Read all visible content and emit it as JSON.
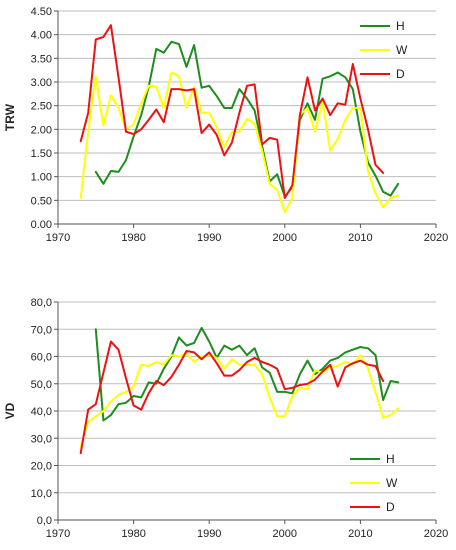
{
  "chart_data": [
    {
      "type": "line",
      "title": "",
      "xlabel": "",
      "ylabel": "TRW",
      "xlim": [
        1970,
        2020
      ],
      "ylim": [
        0,
        4.5
      ],
      "xticks": [
        "1970",
        "1980",
        "1990",
        "2000",
        "2010",
        "2020"
      ],
      "yticks": [
        "0.00",
        "0.50",
        "1.00",
        "1.50",
        "2.00",
        "2.50",
        "3.00",
        "3.50",
        "4.00",
        "4.50"
      ],
      "grid": "horizontal",
      "legend_position": "top-right",
      "series": [
        {
          "name": "H",
          "color": "#1e8c1e",
          "x": [
            1975,
            1976,
            1977,
            1978,
            1979,
            1980,
            1981,
            1982,
            1983,
            1984,
            1985,
            1986,
            1987,
            1988,
            1989,
            1990,
            1991,
            1992,
            1993,
            1994,
            1995,
            1996,
            1997,
            1998,
            1999,
            2000,
            2001,
            2002,
            2003,
            2004,
            2005,
            2006,
            2007,
            2008,
            2009,
            2010,
            2011,
            2012,
            2013,
            2014,
            2015
          ],
          "y": [
            1.1,
            0.85,
            1.12,
            1.1,
            1.35,
            1.85,
            2.3,
            2.9,
            3.7,
            3.62,
            3.85,
            3.8,
            3.32,
            3.78,
            2.88,
            2.92,
            2.7,
            2.45,
            2.45,
            2.85,
            2.65,
            2.4,
            1.65,
            0.9,
            1.05,
            0.58,
            0.78,
            2.2,
            2.55,
            2.2,
            3.07,
            3.12,
            3.2,
            3.1,
            2.85,
            1.95,
            1.3,
            1.02,
            0.68,
            0.6,
            0.85
          ]
        },
        {
          "name": "W",
          "color": "#ffff00",
          "x": [
            1973,
            1974,
            1975,
            1976,
            1977,
            1978,
            1979,
            1980,
            1981,
            1982,
            1983,
            1984,
            1985,
            1986,
            1987,
            1988,
            1989,
            1990,
            1991,
            1992,
            1993,
            1994,
            1995,
            1996,
            1997,
            1998,
            1999,
            2000,
            2001,
            2002,
            2003,
            2004,
            2005,
            2006,
            2007,
            2008,
            2009,
            2010,
            2011,
            2012,
            2013,
            2014,
            2015
          ],
          "y": [
            0.55,
            1.95,
            3.12,
            2.08,
            2.72,
            2.45,
            2.0,
            2.1,
            2.55,
            2.92,
            2.9,
            2.45,
            3.2,
            3.12,
            2.45,
            2.9,
            2.35,
            2.35,
            2.05,
            1.62,
            1.95,
            1.95,
            2.22,
            2.12,
            1.55,
            0.85,
            0.72,
            0.25,
            0.55,
            2.3,
            2.45,
            1.95,
            2.58,
            1.55,
            1.8,
            2.2,
            2.45,
            2.45,
            1.12,
            0.65,
            0.35,
            0.55,
            0.6
          ]
        },
        {
          "name": "D",
          "color": "#ee1111",
          "x": [
            1973,
            1974,
            1975,
            1976,
            1977,
            1978,
            1979,
            1980,
            1981,
            1982,
            1983,
            1984,
            1985,
            1986,
            1987,
            1988,
            1989,
            1990,
            1991,
            1992,
            1993,
            1994,
            1995,
            1996,
            1997,
            1998,
            1999,
            2000,
            2001,
            2002,
            2003,
            2004,
            2005,
            2006,
            2007,
            2008,
            2009,
            2010,
            2011,
            2012,
            2013
          ],
          "y": [
            1.75,
            2.35,
            3.9,
            3.95,
            4.2,
            3.1,
            1.95,
            1.9,
            2.0,
            2.2,
            2.42,
            2.15,
            2.85,
            2.85,
            2.82,
            2.85,
            1.92,
            2.1,
            1.88,
            1.45,
            1.72,
            2.35,
            2.92,
            2.95,
            1.68,
            1.82,
            1.78,
            0.55,
            0.82,
            2.3,
            3.1,
            2.4,
            2.65,
            2.3,
            2.55,
            2.52,
            3.38,
            2.65,
            2.0,
            1.25,
            1.08
          ]
        }
      ]
    },
    {
      "type": "line",
      "title": "",
      "xlabel": "",
      "ylabel": "VD",
      "xlim": [
        1970,
        2020
      ],
      "ylim": [
        0,
        80
      ],
      "xticks": [
        "1970",
        "1980",
        "1990",
        "2000",
        "2010",
        "2020"
      ],
      "yticks": [
        "0,0",
        "10,0",
        "20,0",
        "30,0",
        "40,0",
        "50,0",
        "60,0",
        "70,0",
        "80,0"
      ],
      "grid": "horizontal",
      "legend_position": "bottom-right",
      "series": [
        {
          "name": "H",
          "color": "#1e8c1e",
          "x": [
            1975,
            1976,
            1977,
            1978,
            1979,
            1980,
            1981,
            1982,
            1983,
            1984,
            1985,
            1986,
            1987,
            1988,
            1989,
            1990,
            1991,
            1992,
            1993,
            1994,
            1995,
            1996,
            1997,
            1998,
            1999,
            2000,
            2001,
            2002,
            2003,
            2004,
            2005,
            2006,
            2007,
            2008,
            2009,
            2010,
            2011,
            2012,
            2013,
            2014,
            2015
          ],
          "y": [
            70,
            36.5,
            38.5,
            42.5,
            43,
            45.5,
            45,
            50.5,
            50,
            55.5,
            60,
            67,
            64,
            65,
            70.5,
            65.5,
            59.5,
            64,
            62.5,
            64,
            60.5,
            63,
            56,
            54,
            47,
            47,
            46.5,
            53.5,
            58.5,
            53.5,
            55.5,
            58.5,
            59.5,
            61.5,
            62.5,
            63.5,
            63,
            60.5,
            44,
            51,
            50.5
          ]
        },
        {
          "name": "W",
          "color": "#ffff00",
          "x": [
            1973,
            1974,
            1975,
            1976,
            1977,
            1978,
            1979,
            1980,
            1981,
            1982,
            1983,
            1984,
            1985,
            1986,
            1987,
            1988,
            1989,
            1990,
            1991,
            1992,
            1993,
            1994,
            1995,
            1996,
            1997,
            1998,
            1999,
            2000,
            2001,
            2002,
            2003,
            2004,
            2005,
            2006,
            2007,
            2008,
            2009,
            2010,
            2011,
            2012,
            2013,
            2014,
            2015
          ],
          "y": [
            27,
            36,
            38,
            40,
            43.5,
            46,
            47,
            49,
            57,
            56.5,
            58,
            57,
            60.5,
            60,
            61,
            58,
            60,
            60.5,
            59.5,
            55.5,
            59,
            57,
            57,
            57,
            53.5,
            45,
            38,
            38,
            45.5,
            48.5,
            48,
            55,
            54,
            56,
            56.5,
            58,
            57,
            60.5,
            55.5,
            47,
            37.5,
            38.5,
            41
          ]
        },
        {
          "name": "D",
          "color": "#ee1111",
          "x": [
            1973,
            1974,
            1975,
            1976,
            1977,
            1978,
            1979,
            1980,
            1981,
            1982,
            1983,
            1984,
            1985,
            1986,
            1987,
            1988,
            1989,
            1990,
            1991,
            1992,
            1993,
            1994,
            1995,
            1996,
            1997,
            1998,
            1999,
            2000,
            2001,
            2002,
            2003,
            2004,
            2005,
            2006,
            2007,
            2008,
            2009,
            2010,
            2011,
            2012,
            2013
          ],
          "y": [
            24.5,
            40.5,
            42.5,
            54,
            65.5,
            62.5,
            52,
            42,
            40.5,
            46.5,
            51,
            49.5,
            52.5,
            57,
            62,
            61.5,
            59,
            61.5,
            57.5,
            53,
            53,
            55,
            58,
            59.5,
            58,
            57,
            55.5,
            48,
            48.5,
            49.5,
            50,
            51.5,
            54.5,
            57,
            49,
            56,
            57.5,
            58.5,
            57,
            56.5,
            51
          ]
        }
      ]
    }
  ]
}
